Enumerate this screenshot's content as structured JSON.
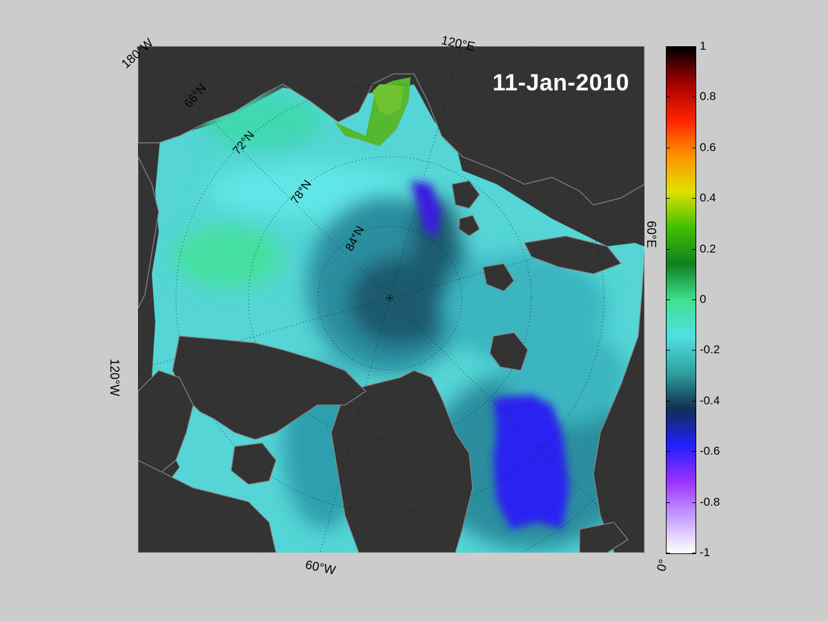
{
  "map": {
    "date": "11-Jan-2010",
    "edge_labels": {
      "top_left": "180°W",
      "top_right": "120°E",
      "right": "60°E",
      "bottom_right": "0°",
      "bottom": "60°W",
      "left": "120°W"
    },
    "latitude_labels": [
      "66°N",
      "72°N",
      "78°N",
      "84°N"
    ],
    "colors": {
      "land": "#333333",
      "land_edge": "#888888",
      "frame_background": "#cccccc"
    }
  },
  "colorbar": {
    "ticks": [
      "1",
      "0.8",
      "0.6",
      "0.4",
      "0.2",
      "0",
      "-0.2",
      "-0.4",
      "-0.6",
      "-0.8",
      "-1"
    ],
    "range": [
      -1,
      1
    ],
    "colormap": [
      "#ffffff",
      "#c6a0ff",
      "#9b30ff",
      "#2020ff",
      "#103050",
      "#30a0a0",
      "#50e0e0",
      "#40e090",
      "#108020",
      "#40c000",
      "#e0e000",
      "#ff9000",
      "#ff2000",
      "#a00000",
      "#000000"
    ]
  }
}
